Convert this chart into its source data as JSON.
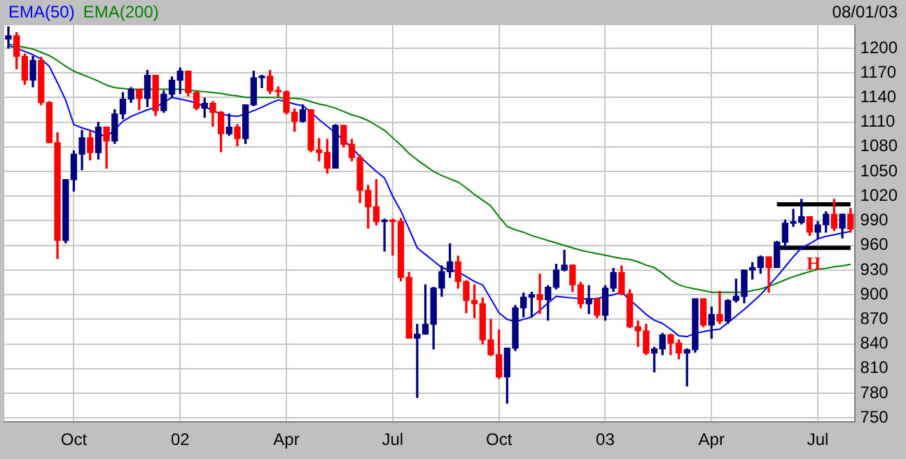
{
  "chart_data": {
    "type": "candlestick",
    "categories": [
      null,
      null,
      null,
      null,
      null,
      null,
      null,
      null,
      "Oct",
      null,
      null,
      null,
      null,
      null,
      null,
      null,
      null,
      null,
      null,
      null,
      null,
      "02",
      null,
      null,
      null,
      null,
      null,
      null,
      null,
      null,
      null,
      null,
      null,
      null,
      "Apr",
      null,
      null,
      null,
      null,
      null,
      null,
      null,
      null,
      null,
      null,
      null,
      null,
      "Jul",
      null,
      null,
      null,
      null,
      null,
      null,
      null,
      null,
      null,
      null,
      null,
      null,
      "Oct",
      null,
      null,
      null,
      null,
      null,
      null,
      null,
      null,
      null,
      null,
      null,
      null,
      "03",
      null,
      null,
      null,
      null,
      null,
      null,
      null,
      null,
      null,
      null,
      null,
      null,
      "Apr",
      null,
      null,
      null,
      null,
      null,
      null,
      null,
      null,
      null,
      null,
      null,
      null,
      "Jul",
      null,
      null,
      null,
      null
    ],
    "ohlc": [
      [
        1211,
        1226,
        1200,
        1215
      ],
      [
        1215,
        1219,
        1175,
        1190
      ],
      [
        1190,
        1193,
        1156,
        1161
      ],
      [
        1161,
        1190,
        1153,
        1185
      ],
      [
        1185,
        1189,
        1131,
        1134
      ],
      [
        1134,
        1135,
        1085,
        1085
      ],
      [
        1085,
        1097,
        944,
        966
      ],
      [
        966,
        1040,
        963,
        1040
      ],
      [
        1040,
        1075,
        1026,
        1071
      ],
      [
        1071,
        1100,
        1052,
        1091
      ],
      [
        1091,
        1099,
        1064,
        1073
      ],
      [
        1073,
        1110,
        1065,
        1104
      ],
      [
        1104,
        1104,
        1054,
        1087
      ],
      [
        1087,
        1125,
        1084,
        1120
      ],
      [
        1120,
        1146,
        1114,
        1138
      ],
      [
        1138,
        1152,
        1134,
        1150
      ],
      [
        1150,
        1150,
        1125,
        1139
      ],
      [
        1139,
        1173,
        1129,
        1167
      ],
      [
        1167,
        1167,
        1118,
        1124
      ],
      [
        1124,
        1148,
        1122,
        1144
      ],
      [
        1144,
        1165,
        1140,
        1161
      ],
      [
        1161,
        1176,
        1145,
        1172
      ],
      [
        1172,
        1172,
        1142,
        1146
      ],
      [
        1146,
        1147,
        1125,
        1127
      ],
      [
        1127,
        1139,
        1116,
        1133
      ],
      [
        1133,
        1135,
        1105,
        1122
      ],
      [
        1122,
        1123,
        1074,
        1096
      ],
      [
        1096,
        1120,
        1094,
        1104
      ],
      [
        1104,
        1107,
        1081,
        1090
      ],
      [
        1090,
        1131,
        1084,
        1131
      ],
      [
        1131,
        1172,
        1130,
        1164
      ],
      [
        1164,
        1167,
        1152,
        1166
      ],
      [
        1166,
        1173,
        1145,
        1148
      ],
      [
        1148,
        1153,
        1141,
        1147
      ],
      [
        1147,
        1148,
        1120,
        1122
      ],
      [
        1122,
        1126,
        1099,
        1111
      ],
      [
        1111,
        1131,
        1110,
        1125
      ],
      [
        1125,
        1125,
        1074,
        1076
      ],
      [
        1076,
        1090,
        1063,
        1073
      ],
      [
        1073,
        1089,
        1048,
        1054
      ],
      [
        1054,
        1107,
        1054,
        1106
      ],
      [
        1106,
        1106,
        1080,
        1083
      ],
      [
        1083,
        1089,
        1063,
        1067
      ],
      [
        1067,
        1070,
        1012,
        1027
      ],
      [
        1027,
        1033,
        981,
        1007
      ],
      [
        1007,
        1040,
        985,
        989
      ],
      [
        989,
        992,
        953,
        990
      ],
      [
        990,
        992,
        948,
        989
      ],
      [
        989,
        993,
        917,
        921
      ],
      [
        921,
        927,
        847,
        847
      ],
      [
        847,
        864,
        775,
        852
      ],
      [
        852,
        912,
        852,
        864
      ],
      [
        864,
        909,
        834,
        908
      ],
      [
        908,
        935,
        898,
        928
      ],
      [
        928,
        962,
        921,
        940
      ],
      [
        940,
        947,
        908,
        916
      ],
      [
        916,
        917,
        878,
        893
      ],
      [
        893,
        912,
        872,
        889
      ],
      [
        889,
        896,
        840,
        845
      ],
      [
        845,
        870,
        826,
        827
      ],
      [
        827,
        857,
        798,
        800
      ],
      [
        800,
        835,
        768,
        835
      ],
      [
        835,
        887,
        832,
        884
      ],
      [
        884,
        902,
        873,
        897
      ],
      [
        897,
        903,
        873,
        900
      ],
      [
        900,
        925,
        877,
        894
      ],
      [
        894,
        911,
        869,
        909
      ],
      [
        909,
        937,
        907,
        930
      ],
      [
        930,
        954,
        929,
        936
      ],
      [
        936,
        936,
        904,
        912
      ],
      [
        912,
        915,
        884,
        889
      ],
      [
        889,
        911,
        877,
        895
      ],
      [
        895,
        896,
        872,
        875
      ],
      [
        875,
        911,
        869,
        908
      ],
      [
        908,
        932,
        904,
        927
      ],
      [
        927,
        935,
        900,
        901
      ],
      [
        901,
        906,
        860,
        861
      ],
      [
        861,
        868,
        837,
        856
      ],
      [
        856,
        864,
        827,
        829
      ],
      [
        829,
        836,
        806,
        834
      ],
      [
        834,
        853,
        827,
        851
      ],
      [
        851,
        852,
        827,
        841
      ],
      [
        841,
        845,
        822,
        829
      ],
      [
        829,
        834,
        789,
        833
      ],
      [
        833,
        895,
        830,
        895
      ],
      [
        895,
        895,
        861,
        863
      ],
      [
        863,
        885,
        847,
        876
      ],
      [
        876,
        904,
        865,
        868
      ],
      [
        868,
        894,
        865,
        893
      ],
      [
        893,
        919,
        891,
        898
      ],
      [
        898,
        930,
        890,
        930
      ],
      [
        930,
        939,
        919,
        933
      ],
      [
        933,
        947,
        926,
        946
      ],
      [
        946,
        946,
        903,
        933
      ],
      [
        933,
        965,
        933,
        964
      ],
      [
        964,
        991,
        955,
        987
      ],
      [
        987,
        1004,
        983,
        988
      ],
      [
        988,
        1016,
        986,
        995
      ],
      [
        995,
        995,
        972,
        976
      ],
      [
        976,
        989,
        968,
        985
      ],
      [
        985,
        1001,
        976,
        998
      ],
      [
        998,
        1016,
        978,
        981
      ],
      [
        981,
        998,
        969,
        998
      ],
      [
        998,
        1005,
        976,
        980
      ]
    ],
    "colors": [
      "#000080",
      "#ff0000",
      "#ff0000",
      "#000080",
      "#ff0000",
      "#ff0000",
      "#ff0000",
      "#000080",
      "#000080",
      "#000080",
      "#ff0000",
      "#000080",
      "#ff0000",
      "#000080",
      "#000080",
      "#000080",
      "#ff0000",
      "#000080",
      "#ff0000",
      "#000080",
      "#000080",
      "#000080",
      "#ff0000",
      "#ff0000",
      "#000080",
      "#ff0000",
      "#ff0000",
      "#000080",
      "#ff0000",
      "#000080",
      "#000080",
      "#000080",
      "#ff0000",
      "#ff0000",
      "#ff0000",
      "#ff0000",
      "#000080",
      "#ff0000",
      "#ff0000",
      "#ff0000",
      "#000080",
      "#ff0000",
      "#ff0000",
      "#ff0000",
      "#ff0000",
      "#ff0000",
      "#000080",
      "#ff0000",
      "#ff0000",
      "#ff0000",
      "#000080",
      "#000080",
      "#000080",
      "#000080",
      "#000080",
      "#ff0000",
      "#ff0000",
      "#ff0000",
      "#ff0000",
      "#ff0000",
      "#ff0000",
      "#000080",
      "#000080",
      "#000080",
      "#000080",
      "#ff0000",
      "#000080",
      "#000080",
      "#000080",
      "#ff0000",
      "#ff0000",
      "#000080",
      "#ff0000",
      "#000080",
      "#000080",
      "#ff0000",
      "#ff0000",
      "#ff0000",
      "#ff0000",
      "#000080",
      "#000080",
      "#ff0000",
      "#ff0000",
      "#000080",
      "#000080",
      "#ff0000",
      "#000080",
      "#ff0000",
      "#000080",
      "#000080",
      "#000080",
      "#000080",
      "#000080",
      "#ff0000",
      "#000080",
      "#000080",
      "#000080",
      "#000080",
      "#ff0000",
      "#000080",
      "#000080",
      "#ff0000",
      "#000080",
      "#ff0000"
    ],
    "series": [
      {
        "type": "line",
        "name": "EMA(50)",
        "color": "#0000ff",
        "values": [
          1203,
          1200,
          1196,
          1192,
          1187,
          1178,
          1158,
          1137,
          1107,
          1103,
          1100,
          1096,
          1092,
          1101,
          1111,
          1117,
          1121,
          1125,
          1128,
          1134,
          1140,
          1138,
          1136,
          1133,
          1129,
          1124,
          1120,
          1118,
          1117,
          1120,
          1124,
          1128,
          1133,
          1137,
          1135,
          1132,
          1130,
          1122,
          1113,
          1105,
          1097,
          1088,
          1079,
          1068,
          1059,
          1050,
          1042,
          1020,
          1002,
          980,
          957,
          949,
          941,
          933,
          930,
          928,
          922,
          916,
          912,
          895,
          878,
          870,
          867,
          870,
          873,
          881,
          890,
          898,
          897,
          896,
          895,
          895,
          895,
          898,
          900,
          903,
          894,
          885,
          876,
          869,
          865,
          858,
          850,
          849,
          853,
          855,
          857,
          858,
          866,
          874,
          882,
          891,
          900,
          911,
          922,
          934,
          946,
          957,
          962,
          968,
          971,
          973,
          975,
          977
        ]
      },
      {
        "type": "line",
        "name": "EMA(200)",
        "color": "#008000",
        "values": [
          1205,
          1203,
          1201,
          1199,
          1195,
          1191,
          1185,
          1178,
          1172,
          1168,
          1164,
          1160,
          1155,
          1152,
          1151,
          1150,
          1150,
          1150,
          1150,
          1150,
          1150,
          1150,
          1149,
          1148,
          1147,
          1146,
          1145,
          1143,
          1142,
          1140,
          1140,
          1140,
          1140,
          1140,
          1139,
          1139,
          1138,
          1135,
          1132,
          1130,
          1127,
          1123,
          1119,
          1116,
          1112,
          1106,
          1100,
          1091,
          1082,
          1072,
          1064,
          1057,
          1050,
          1045,
          1041,
          1037,
          1030,
          1022,
          1015,
          1008,
          995,
          983,
          979,
          976,
          972,
          969,
          966,
          963,
          960,
          957,
          954,
          952,
          950,
          948,
          946,
          944,
          943,
          940,
          936,
          933,
          926,
          918,
          912,
          909,
          907,
          905,
          903,
          903,
          903,
          903,
          903,
          905,
          907,
          910,
          914,
          918,
          922,
          925,
          928,
          931,
          932,
          934,
          935,
          937
        ]
      },
      {
        "type": "line",
        "color": "#000000",
        "values": [
          null,
          null,
          null,
          null,
          null,
          null,
          null,
          null,
          null,
          null,
          null,
          null,
          null,
          null,
          null,
          null,
          null,
          null,
          null,
          null,
          null,
          null,
          null,
          null,
          null,
          null,
          null,
          null,
          null,
          null,
          null,
          null,
          null,
          null,
          null,
          null,
          null,
          null,
          null,
          null,
          null,
          null,
          null,
          null,
          null,
          null,
          null,
          null,
          null,
          null,
          null,
          null,
          null,
          null,
          null,
          null,
          null,
          null,
          null,
          null,
          null,
          null,
          null,
          null,
          null,
          null,
          null,
          null,
          null,
          null,
          null,
          null,
          null,
          null,
          null,
          null,
          null,
          null,
          null,
          null,
          null,
          null,
          null,
          null,
          null,
          null,
          null,
          null,
          null,
          null,
          null,
          null,
          null,
          null,
          1010,
          1010,
          1010,
          1010,
          1010,
          1010,
          1010,
          1010,
          1010,
          1010
        ]
      },
      {
        "type": "line",
        "color": "#000000",
        "values": [
          null,
          null,
          null,
          null,
          null,
          null,
          null,
          null,
          null,
          null,
          null,
          null,
          null,
          null,
          null,
          null,
          null,
          null,
          null,
          null,
          null,
          null,
          null,
          null,
          null,
          null,
          null,
          null,
          null,
          null,
          null,
          null,
          null,
          null,
          null,
          null,
          null,
          null,
          null,
          null,
          null,
          null,
          null,
          null,
          null,
          null,
          null,
          null,
          null,
          null,
          null,
          null,
          null,
          null,
          null,
          null,
          null,
          null,
          null,
          null,
          null,
          null,
          null,
          null,
          null,
          null,
          null,
          null,
          null,
          null,
          null,
          null,
          null,
          null,
          null,
          null,
          null,
          null,
          null,
          null,
          null,
          null,
          null,
          null,
          null,
          null,
          null,
          null,
          null,
          null,
          null,
          null,
          null,
          null,
          957,
          957,
          957,
          957,
          957,
          957,
          957,
          957,
          957,
          957
        ]
      }
    ],
    "ylim": [
      745,
      1228
    ],
    "yticks": [
      750,
      780,
      810,
      840,
      870,
      900,
      930,
      960,
      990,
      1020,
      1050,
      1080,
      1110,
      1140,
      1170,
      1200
    ],
    "grid": true,
    "legend": "top left",
    "annotations": [
      "08/01/03",
      "H"
    ]
  }
}
